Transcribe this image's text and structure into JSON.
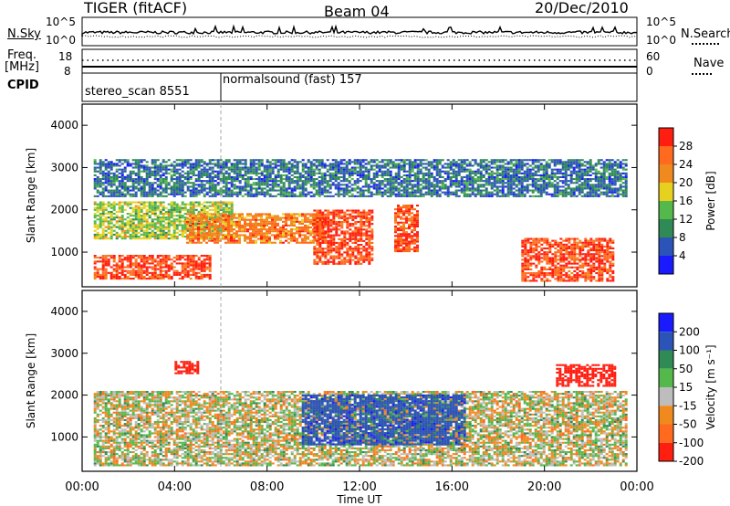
{
  "header": {
    "radar": "TIGER (fitACF)",
    "beam": "Beam 04",
    "date": "20/Dec/2010"
  },
  "strip_labels": {
    "nsky": "N.Sky",
    "nsky_top": "10^5",
    "nsky_bottom": "10^0",
    "nsearch": "N.Search",
    "nsearch_top": "10^5",
    "nsearch_bottom": "10^0",
    "freq_line1": "Freq.",
    "freq_line2": "[MHz]",
    "freq_top": "18",
    "freq_bottom": "8",
    "nave": "Nave",
    "nave_top": "60",
    "nave_bottom": "0",
    "cpid": "CPID"
  },
  "cpid_segments": [
    {
      "label": "stereo_scan 8551",
      "start_hour": 0
    },
    {
      "label": "normalsound (fast) 157",
      "start_hour": 6
    }
  ],
  "chart_data": [
    {
      "type": "heatmap",
      "title": "",
      "quantity": "Power",
      "xlabel": "",
      "ylabel": "Slant Range [km]",
      "xlim_hours": [
        0,
        24
      ],
      "ylim": [
        180,
        4500
      ],
      "x_ticks": [],
      "y_ticks": [
        1000,
        2000,
        3000,
        4000
      ],
      "colorbar": {
        "label": "Power [dB]",
        "levels": [
          4,
          8,
          12,
          16,
          20,
          24,
          28
        ],
        "colors": [
          "#1a1aff",
          "#2c54b8",
          "#2f8a56",
          "#55b84a",
          "#e6d21e",
          "#f08a1e",
          "#ff6a1e",
          "#ff1e10"
        ]
      },
      "echo_bands": [
        {
          "t0": 0.5,
          "t1": 5.5,
          "r0": 350,
          "r1": 900,
          "level": 28
        },
        {
          "t0": 0.5,
          "t1": 6.5,
          "r0": 1300,
          "r1": 2200,
          "level": 16
        },
        {
          "t0": 4.5,
          "t1": 10.5,
          "r0": 1200,
          "r1": 1900,
          "level": 24
        },
        {
          "t0": 10.0,
          "t1": 12.5,
          "r0": 700,
          "r1": 2000,
          "level": 28
        },
        {
          "t0": 13.5,
          "t1": 14.5,
          "r0": 1000,
          "r1": 2100,
          "level": 28
        },
        {
          "t0": 19.0,
          "t1": 23.0,
          "r0": 300,
          "r1": 1300,
          "level": 28
        },
        {
          "t0": 0.5,
          "t1": 23.5,
          "r0": 2300,
          "r1": 3200,
          "level": 8
        }
      ]
    },
    {
      "type": "heatmap",
      "title": "",
      "quantity": "Velocity",
      "xlabel": "Time UT",
      "ylabel": "Slant Range [km]",
      "xlim_hours": [
        0,
        24
      ],
      "ylim": [
        180,
        4500
      ],
      "x_ticks": [
        "00:00",
        "04:00",
        "08:00",
        "12:00",
        "16:00",
        "20:00",
        "00:00"
      ],
      "y_ticks": [
        1000,
        2000,
        3000,
        4000
      ],
      "colorbar": {
        "label": "Velocity [m s⁻¹]",
        "levels": [
          200,
          100,
          50,
          15,
          -15,
          -50,
          -100,
          -200
        ],
        "colors": [
          "#1a1aff",
          "#2c54b8",
          "#2f8a56",
          "#55b84a",
          "#bdbdbd",
          "#f08a1e",
          "#ff6a1e",
          "#ff1e10"
        ]
      },
      "echo_bands": [
        {
          "t0": 0.5,
          "t1": 23.5,
          "r0": 300,
          "r1": 2100,
          "level": 0
        },
        {
          "t0": 9.5,
          "t1": 16.5,
          "r0": 800,
          "r1": 2000,
          "level": 150
        },
        {
          "t0": 4.0,
          "t1": 5.0,
          "r0": 2500,
          "r1": 2800,
          "level": -200
        },
        {
          "t0": 20.5,
          "t1": 23.0,
          "r0": 2200,
          "r1": 2700,
          "level": -200
        }
      ]
    }
  ]
}
